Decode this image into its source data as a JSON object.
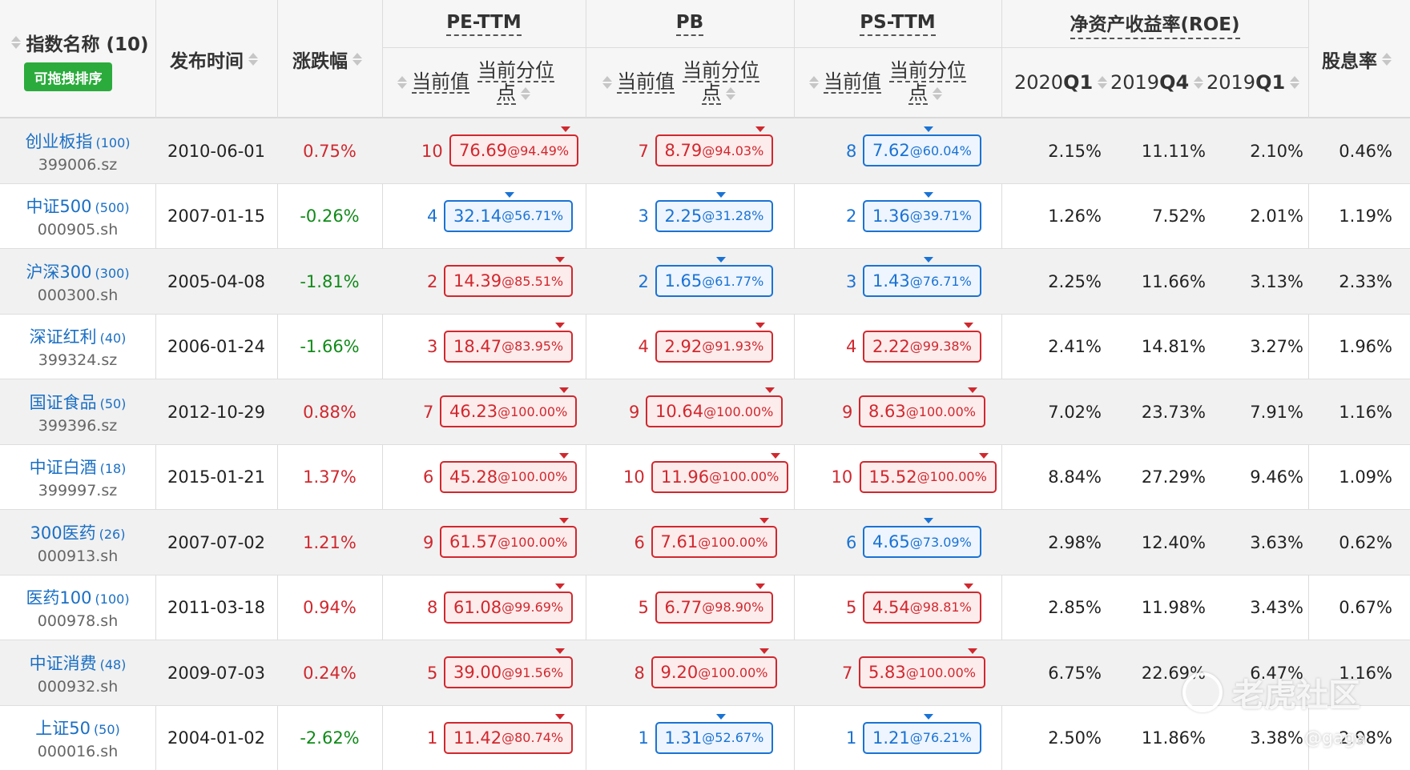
{
  "header": {
    "name_col": "指数名称 (10)",
    "drag_button": "可拖拽排序",
    "release_date": "发布时间",
    "change": "涨跌幅",
    "pe_group": "PE-TTM",
    "pb_group": "PB",
    "ps_group": "PS-TTM",
    "roe_group": "净资产收益率(ROE)",
    "dividend": "股息率",
    "current_value": "当前值",
    "current_percentile_1": "当前分位",
    "current_percentile_2": "点",
    "roe_q1_prefix": "2020",
    "roe_q1_suffix": "Q1",
    "roe_q2_prefix": "2019",
    "roe_q2_suffix": "Q4",
    "roe_q3_prefix": "2019",
    "roe_q3_suffix": "Q1"
  },
  "rows": [
    {
      "name": "创业板指",
      "count": "(100)",
      "code": "399006.sz",
      "date": "2010-06-01",
      "change": "0.75%",
      "change_dir": "pos",
      "pe": {
        "rank": "10",
        "val": "76.69",
        "pct": "@94.49%",
        "color": "red"
      },
      "pb": {
        "rank": "7",
        "val": "8.79",
        "pct": "@94.03%",
        "color": "red"
      },
      "ps": {
        "rank": "8",
        "val": "7.62",
        "pct": "@60.04%",
        "color": "blue"
      },
      "roe1": "2.15%",
      "roe2": "11.11%",
      "roe3": "2.10%",
      "div": "0.46%"
    },
    {
      "name": "中证500",
      "count": "(500)",
      "code": "000905.sh",
      "date": "2007-01-15",
      "change": "-0.26%",
      "change_dir": "neg",
      "pe": {
        "rank": "4",
        "val": "32.14",
        "pct": "@56.71%",
        "color": "blue"
      },
      "pb": {
        "rank": "3",
        "val": "2.25",
        "pct": "@31.28%",
        "color": "blue"
      },
      "ps": {
        "rank": "2",
        "val": "1.36",
        "pct": "@39.71%",
        "color": "blue"
      },
      "roe1": "1.26%",
      "roe2": "7.52%",
      "roe3": "2.01%",
      "div": "1.19%"
    },
    {
      "name": "沪深300",
      "count": "(300)",
      "code": "000300.sh",
      "date": "2005-04-08",
      "change": "-1.81%",
      "change_dir": "neg",
      "pe": {
        "rank": "2",
        "val": "14.39",
        "pct": "@85.51%",
        "color": "red"
      },
      "pb": {
        "rank": "2",
        "val": "1.65",
        "pct": "@61.77%",
        "color": "blue"
      },
      "ps": {
        "rank": "3",
        "val": "1.43",
        "pct": "@76.71%",
        "color": "blue"
      },
      "roe1": "2.25%",
      "roe2": "11.66%",
      "roe3": "3.13%",
      "div": "2.33%"
    },
    {
      "name": "深证红利",
      "count": "(40)",
      "code": "399324.sz",
      "date": "2006-01-24",
      "change": "-1.66%",
      "change_dir": "neg",
      "pe": {
        "rank": "3",
        "val": "18.47",
        "pct": "@83.95%",
        "color": "red"
      },
      "pb": {
        "rank": "4",
        "val": "2.92",
        "pct": "@91.93%",
        "color": "red"
      },
      "ps": {
        "rank": "4",
        "val": "2.22",
        "pct": "@99.38%",
        "color": "red"
      },
      "roe1": "2.41%",
      "roe2": "14.81%",
      "roe3": "3.27%",
      "div": "1.96%"
    },
    {
      "name": "国证食品",
      "count": "(50)",
      "code": "399396.sz",
      "date": "2012-10-29",
      "change": "0.88%",
      "change_dir": "pos",
      "pe": {
        "rank": "7",
        "val": "46.23",
        "pct": "@100.00%",
        "color": "red"
      },
      "pb": {
        "rank": "9",
        "val": "10.64",
        "pct": "@100.00%",
        "color": "red"
      },
      "ps": {
        "rank": "9",
        "val": "8.63",
        "pct": "@100.00%",
        "color": "red"
      },
      "roe1": "7.02%",
      "roe2": "23.73%",
      "roe3": "7.91%",
      "div": "1.16%"
    },
    {
      "name": "中证白酒",
      "count": "(18)",
      "code": "399997.sz",
      "date": "2015-01-21",
      "change": "1.37%",
      "change_dir": "pos",
      "pe": {
        "rank": "6",
        "val": "45.28",
        "pct": "@100.00%",
        "color": "red"
      },
      "pb": {
        "rank": "10",
        "val": "11.96",
        "pct": "@100.00%",
        "color": "red"
      },
      "ps": {
        "rank": "10",
        "val": "15.52",
        "pct": "@100.00%",
        "color": "red"
      },
      "roe1": "8.84%",
      "roe2": "27.29%",
      "roe3": "9.46%",
      "div": "1.09%"
    },
    {
      "name": "300医药",
      "count": "(26)",
      "code": "000913.sh",
      "date": "2007-07-02",
      "change": "1.21%",
      "change_dir": "pos",
      "pe": {
        "rank": "9",
        "val": "61.57",
        "pct": "@100.00%",
        "color": "red"
      },
      "pb": {
        "rank": "6",
        "val": "7.61",
        "pct": "@100.00%",
        "color": "red"
      },
      "ps": {
        "rank": "6",
        "val": "4.65",
        "pct": "@73.09%",
        "color": "blue"
      },
      "roe1": "2.98%",
      "roe2": "12.40%",
      "roe3": "3.63%",
      "div": "0.62%"
    },
    {
      "name": "医药100",
      "count": "(100)",
      "code": "000978.sh",
      "date": "2011-03-18",
      "change": "0.94%",
      "change_dir": "pos",
      "pe": {
        "rank": "8",
        "val": "61.08",
        "pct": "@99.69%",
        "color": "red"
      },
      "pb": {
        "rank": "5",
        "val": "6.77",
        "pct": "@98.90%",
        "color": "red"
      },
      "ps": {
        "rank": "5",
        "val": "4.54",
        "pct": "@98.81%",
        "color": "red"
      },
      "roe1": "2.85%",
      "roe2": "11.98%",
      "roe3": "3.43%",
      "div": "0.67%"
    },
    {
      "name": "中证消费",
      "count": "(48)",
      "code": "000932.sh",
      "date": "2009-07-03",
      "change": "0.24%",
      "change_dir": "pos",
      "pe": {
        "rank": "5",
        "val": "39.00",
        "pct": "@91.56%",
        "color": "red"
      },
      "pb": {
        "rank": "8",
        "val": "9.20",
        "pct": "@100.00%",
        "color": "red"
      },
      "ps": {
        "rank": "7",
        "val": "5.83",
        "pct": "@100.00%",
        "color": "red"
      },
      "roe1": "6.75%",
      "roe2": "22.69%",
      "roe3": "6.47%",
      "div": "1.16%"
    },
    {
      "name": "上证50",
      "count": "(50)",
      "code": "000016.sh",
      "date": "2004-01-02",
      "change": "-2.62%",
      "change_dir": "neg",
      "pe": {
        "rank": "1",
        "val": "11.42",
        "pct": "@80.74%",
        "color": "red"
      },
      "pb": {
        "rank": "1",
        "val": "1.31",
        "pct": "@52.67%",
        "color": "blue"
      },
      "ps": {
        "rank": "1",
        "val": "1.21",
        "pct": "@76.21%",
        "color": "blue"
      },
      "roe1": "2.50%",
      "roe2": "11.86%",
      "roe3": "3.38%",
      "div": "2.98%"
    }
  ],
  "watermark": {
    "brand": "老虎社区",
    "user": "@gaga"
  },
  "colors": {
    "red": "#d0282e",
    "blue": "#1a73d4",
    "green": "#108a18",
    "button_green": "#2bab3c"
  }
}
